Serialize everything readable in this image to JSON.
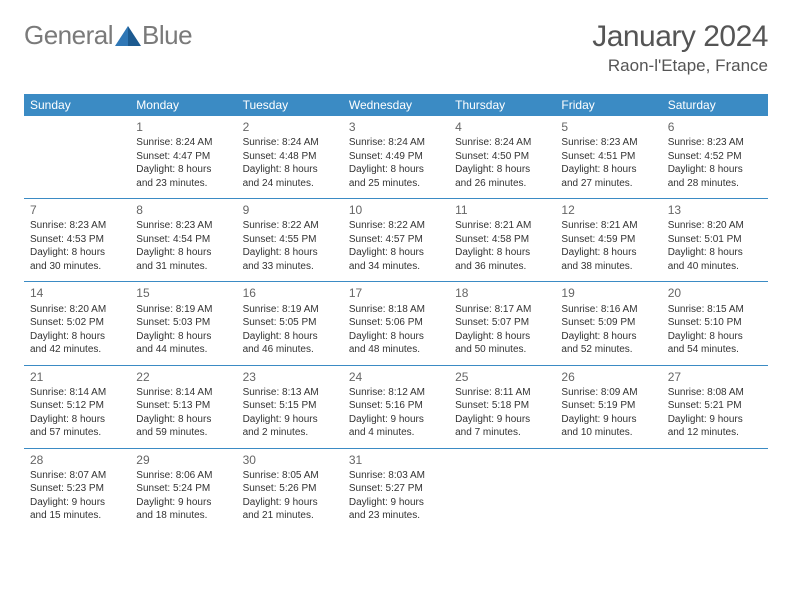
{
  "logo": {
    "text1": "General",
    "text2": "Blue"
  },
  "title": "January 2024",
  "location": "Raon-l'Etape, France",
  "colors": {
    "header_bg": "#3b8bc4",
    "header_text": "#ffffff",
    "row_border": "#3b8bc4",
    "logo_gray": "#7a7a7a",
    "logo_blue": "#2f77b6",
    "title_color": "#555555",
    "cell_text": "#333333",
    "daynum_color": "#666666",
    "background": "#ffffff"
  },
  "day_headers": [
    "Sunday",
    "Monday",
    "Tuesday",
    "Wednesday",
    "Thursday",
    "Friday",
    "Saturday"
  ],
  "weeks": [
    [
      null,
      {
        "n": "1",
        "sr": "Sunrise: 8:24 AM",
        "ss": "Sunset: 4:47 PM",
        "d1": "Daylight: 8 hours",
        "d2": "and 23 minutes."
      },
      {
        "n": "2",
        "sr": "Sunrise: 8:24 AM",
        "ss": "Sunset: 4:48 PM",
        "d1": "Daylight: 8 hours",
        "d2": "and 24 minutes."
      },
      {
        "n": "3",
        "sr": "Sunrise: 8:24 AM",
        "ss": "Sunset: 4:49 PM",
        "d1": "Daylight: 8 hours",
        "d2": "and 25 minutes."
      },
      {
        "n": "4",
        "sr": "Sunrise: 8:24 AM",
        "ss": "Sunset: 4:50 PM",
        "d1": "Daylight: 8 hours",
        "d2": "and 26 minutes."
      },
      {
        "n": "5",
        "sr": "Sunrise: 8:23 AM",
        "ss": "Sunset: 4:51 PM",
        "d1": "Daylight: 8 hours",
        "d2": "and 27 minutes."
      },
      {
        "n": "6",
        "sr": "Sunrise: 8:23 AM",
        "ss": "Sunset: 4:52 PM",
        "d1": "Daylight: 8 hours",
        "d2": "and 28 minutes."
      }
    ],
    [
      {
        "n": "7",
        "sr": "Sunrise: 8:23 AM",
        "ss": "Sunset: 4:53 PM",
        "d1": "Daylight: 8 hours",
        "d2": "and 30 minutes."
      },
      {
        "n": "8",
        "sr": "Sunrise: 8:23 AM",
        "ss": "Sunset: 4:54 PM",
        "d1": "Daylight: 8 hours",
        "d2": "and 31 minutes."
      },
      {
        "n": "9",
        "sr": "Sunrise: 8:22 AM",
        "ss": "Sunset: 4:55 PM",
        "d1": "Daylight: 8 hours",
        "d2": "and 33 minutes."
      },
      {
        "n": "10",
        "sr": "Sunrise: 8:22 AM",
        "ss": "Sunset: 4:57 PM",
        "d1": "Daylight: 8 hours",
        "d2": "and 34 minutes."
      },
      {
        "n": "11",
        "sr": "Sunrise: 8:21 AM",
        "ss": "Sunset: 4:58 PM",
        "d1": "Daylight: 8 hours",
        "d2": "and 36 minutes."
      },
      {
        "n": "12",
        "sr": "Sunrise: 8:21 AM",
        "ss": "Sunset: 4:59 PM",
        "d1": "Daylight: 8 hours",
        "d2": "and 38 minutes."
      },
      {
        "n": "13",
        "sr": "Sunrise: 8:20 AM",
        "ss": "Sunset: 5:01 PM",
        "d1": "Daylight: 8 hours",
        "d2": "and 40 minutes."
      }
    ],
    [
      {
        "n": "14",
        "sr": "Sunrise: 8:20 AM",
        "ss": "Sunset: 5:02 PM",
        "d1": "Daylight: 8 hours",
        "d2": "and 42 minutes."
      },
      {
        "n": "15",
        "sr": "Sunrise: 8:19 AM",
        "ss": "Sunset: 5:03 PM",
        "d1": "Daylight: 8 hours",
        "d2": "and 44 minutes."
      },
      {
        "n": "16",
        "sr": "Sunrise: 8:19 AM",
        "ss": "Sunset: 5:05 PM",
        "d1": "Daylight: 8 hours",
        "d2": "and 46 minutes."
      },
      {
        "n": "17",
        "sr": "Sunrise: 8:18 AM",
        "ss": "Sunset: 5:06 PM",
        "d1": "Daylight: 8 hours",
        "d2": "and 48 minutes."
      },
      {
        "n": "18",
        "sr": "Sunrise: 8:17 AM",
        "ss": "Sunset: 5:07 PM",
        "d1": "Daylight: 8 hours",
        "d2": "and 50 minutes."
      },
      {
        "n": "19",
        "sr": "Sunrise: 8:16 AM",
        "ss": "Sunset: 5:09 PM",
        "d1": "Daylight: 8 hours",
        "d2": "and 52 minutes."
      },
      {
        "n": "20",
        "sr": "Sunrise: 8:15 AM",
        "ss": "Sunset: 5:10 PM",
        "d1": "Daylight: 8 hours",
        "d2": "and 54 minutes."
      }
    ],
    [
      {
        "n": "21",
        "sr": "Sunrise: 8:14 AM",
        "ss": "Sunset: 5:12 PM",
        "d1": "Daylight: 8 hours",
        "d2": "and 57 minutes."
      },
      {
        "n": "22",
        "sr": "Sunrise: 8:14 AM",
        "ss": "Sunset: 5:13 PM",
        "d1": "Daylight: 8 hours",
        "d2": "and 59 minutes."
      },
      {
        "n": "23",
        "sr": "Sunrise: 8:13 AM",
        "ss": "Sunset: 5:15 PM",
        "d1": "Daylight: 9 hours",
        "d2": "and 2 minutes."
      },
      {
        "n": "24",
        "sr": "Sunrise: 8:12 AM",
        "ss": "Sunset: 5:16 PM",
        "d1": "Daylight: 9 hours",
        "d2": "and 4 minutes."
      },
      {
        "n": "25",
        "sr": "Sunrise: 8:11 AM",
        "ss": "Sunset: 5:18 PM",
        "d1": "Daylight: 9 hours",
        "d2": "and 7 minutes."
      },
      {
        "n": "26",
        "sr": "Sunrise: 8:09 AM",
        "ss": "Sunset: 5:19 PM",
        "d1": "Daylight: 9 hours",
        "d2": "and 10 minutes."
      },
      {
        "n": "27",
        "sr": "Sunrise: 8:08 AM",
        "ss": "Sunset: 5:21 PM",
        "d1": "Daylight: 9 hours",
        "d2": "and 12 minutes."
      }
    ],
    [
      {
        "n": "28",
        "sr": "Sunrise: 8:07 AM",
        "ss": "Sunset: 5:23 PM",
        "d1": "Daylight: 9 hours",
        "d2": "and 15 minutes."
      },
      {
        "n": "29",
        "sr": "Sunrise: 8:06 AM",
        "ss": "Sunset: 5:24 PM",
        "d1": "Daylight: 9 hours",
        "d2": "and 18 minutes."
      },
      {
        "n": "30",
        "sr": "Sunrise: 8:05 AM",
        "ss": "Sunset: 5:26 PM",
        "d1": "Daylight: 9 hours",
        "d2": "and 21 minutes."
      },
      {
        "n": "31",
        "sr": "Sunrise: 8:03 AM",
        "ss": "Sunset: 5:27 PM",
        "d1": "Daylight: 9 hours",
        "d2": "and 23 minutes."
      },
      null,
      null,
      null
    ]
  ]
}
